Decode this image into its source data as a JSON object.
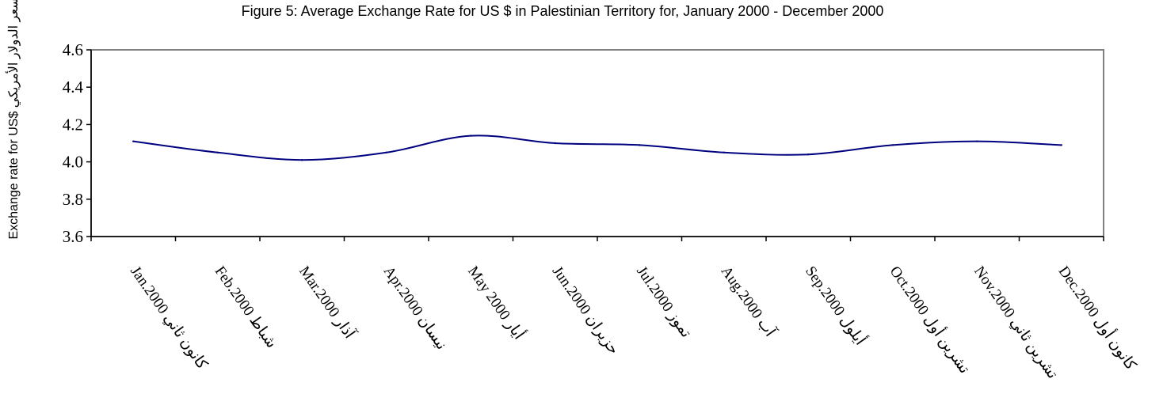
{
  "chart_data": {
    "type": "line",
    "title": "Figure 5: Average Exchange Rate for US $  in Palestinian Territory for, January  2000 - December 2000",
    "ylabel": "Exchange rate for US$  سعر الدولار الأمريكي",
    "categories": [
      "Jan.2000 كانون ثاني",
      "Feb.2000 شباط",
      "Mar.2000 آذار",
      "Apr.2000 نيسان",
      "May 2000 أيار",
      "Jun.2000 حزيران",
      "Jul.2000 تموز",
      "Aug.2000 آب",
      "Sep.2000 أيلول",
      "Oct.2000 تشرين أول",
      "Nov.2000 تشرين ثاني",
      "Dec.2000 كانون أول"
    ],
    "values": [
      4.11,
      4.05,
      4.01,
      4.05,
      4.14,
      4.1,
      4.09,
      4.05,
      4.04,
      4.09,
      4.11,
      4.09
    ],
    "ylim": [
      3.6,
      4.6
    ],
    "yticks": [
      "3.6",
      "3.8",
      "4.0",
      "4.2",
      "4.4",
      "4.6"
    ],
    "grid": false,
    "line_color": "#000080",
    "frame_color": "#808080"
  }
}
